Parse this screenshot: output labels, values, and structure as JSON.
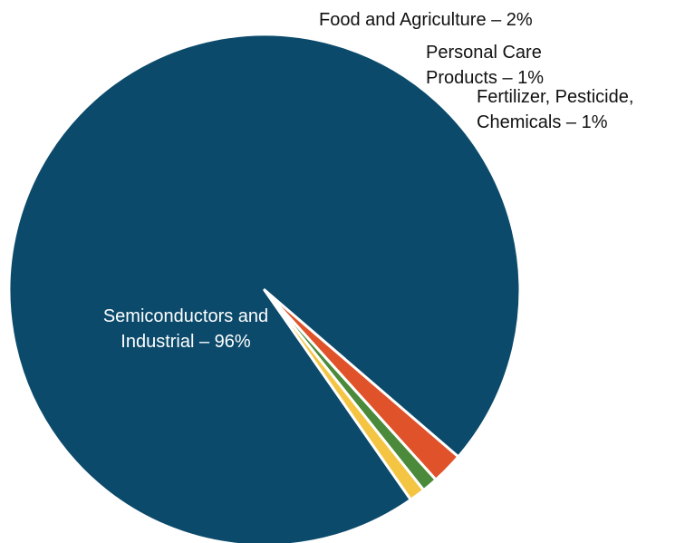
{
  "chart_data": {
    "type": "pie",
    "title": "",
    "slices": [
      {
        "label": "Semiconductors and Industrial",
        "percent_label": "96%",
        "value": 96,
        "color": "#0b4a6b",
        "label_lines": [
          "Semiconductors and",
          "Industrial – 96%"
        ]
      },
      {
        "label": "Food and Agriculture",
        "percent_label": "2%",
        "value": 2,
        "color": "#e0522a",
        "label_lines": [
          "Food and Agriculture – 2%"
        ]
      },
      {
        "label": "Personal Care Products",
        "percent_label": "1%",
        "value": 1,
        "color": "#4a8a3a",
        "label_lines": [
          "Personal Care",
          "Products – 1%"
        ]
      },
      {
        "label": "Fertilizer, Pesticide, Chemicals",
        "percent_label": "1%",
        "value": 1,
        "color": "#f4c443",
        "label_lines": [
          "Fertilizer, Pesticide,",
          "Chemicals – 1%"
        ]
      }
    ]
  }
}
